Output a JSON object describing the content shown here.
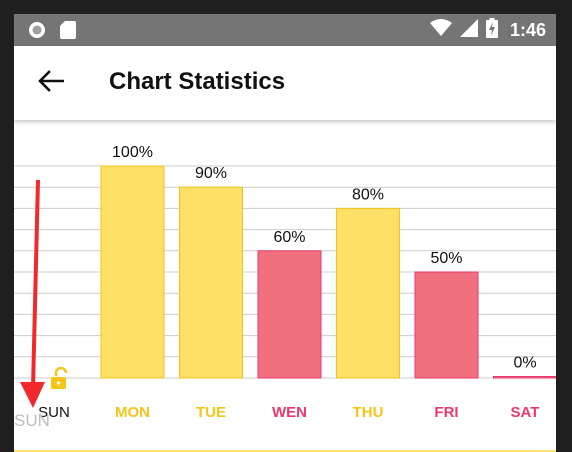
{
  "status_bar": {
    "time": "1:46",
    "left_icons": [
      "record-circle-icon",
      "sd-card-icon"
    ],
    "right_icons": [
      "wifi-icon",
      "signal-icon",
      "battery-charging-icon"
    ]
  },
  "app_bar": {
    "title": "Chart Statistics",
    "back_icon": "arrow-left-icon"
  },
  "colors": {
    "status_bar": "#757575",
    "bar_yellow": "#ffe066",
    "bar_yellow_border": "#f0c419",
    "bar_pink": "#f07080",
    "bar_pink_border": "#e8396e",
    "label_yellow": "#f5c518",
    "label_pink": "#e8396e",
    "grid": "#cccccc",
    "annotation_arrow": "#f02a2a"
  },
  "chart_data": {
    "type": "bar",
    "ylim": [
      0,
      100
    ],
    "categories": [
      "SUN",
      "MON",
      "TUE",
      "WEN",
      "THU",
      "FRI",
      "SAT"
    ],
    "values": [
      null,
      100,
      90,
      60,
      80,
      50,
      0
    ],
    "value_labels": [
      "",
      "100%",
      "90%",
      "60%",
      "80%",
      "50%",
      "0%"
    ],
    "bar_colors": [
      "",
      "yellow",
      "yellow",
      "pink",
      "yellow",
      "pink",
      "pink"
    ],
    "label_colors": [
      "#111111",
      "#f5c518",
      "#f5c518",
      "#e8396e",
      "#f5c518",
      "#e8396e",
      "#e8396e"
    ],
    "grid": true,
    "ghost_label": "SUN",
    "lock_icon": "unlock-icon",
    "annotation": "red-down-arrow"
  }
}
